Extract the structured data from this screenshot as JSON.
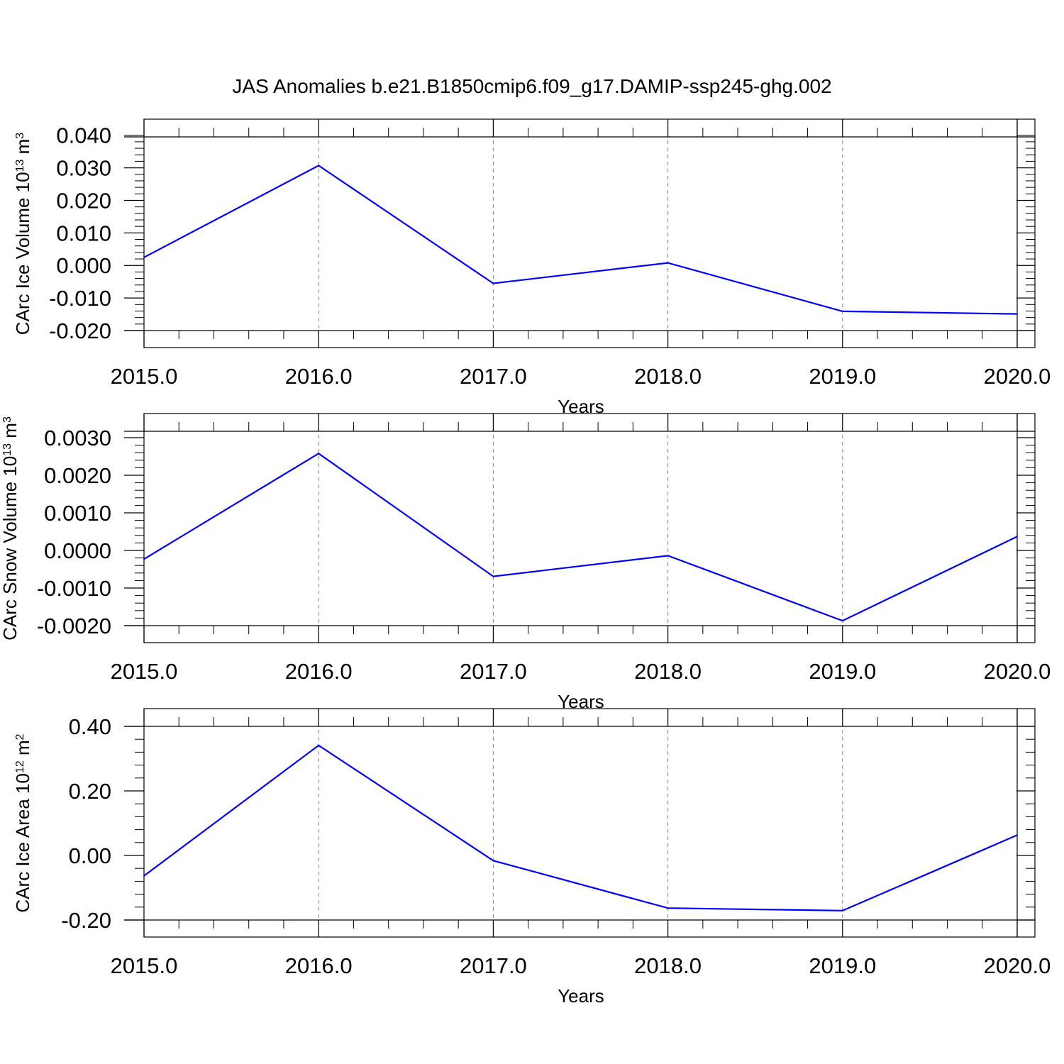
{
  "figure": {
    "title": "JAS Anomalies b.e21.B1850cmip6.f09_g17.DAMIP-ssp245-ghg.002"
  },
  "chart_data": [
    {
      "type": "line",
      "xlabel": "Years",
      "ylabel": {
        "text": "CArc Ice Volume 10",
        "sup": "13",
        "unit": " m",
        "unit_sup": "3"
      },
      "x": [
        2015,
        2016,
        2017,
        2018,
        2019,
        2020
      ],
      "xticks": [
        "2015.0",
        "2016.0",
        "2017.0",
        "2018.0",
        "2019.0",
        "2020.0"
      ],
      "xlim": [
        2015,
        2020
      ],
      "ylim": [
        -0.02,
        0.0395
      ],
      "yticks": [
        -0.02,
        -0.01,
        0.0,
        0.01,
        0.02,
        0.03,
        0.04
      ],
      "yticklabels": [
        "-0.020",
        "-0.010",
        "0.000",
        "0.010",
        "0.020",
        "0.030",
        "0.040"
      ],
      "yminor": 0.002,
      "grid": "vertical dashed at major x ticks",
      "series": [
        {
          "values": [
            0.0025,
            0.0307,
            -0.0055,
            0.0008,
            -0.0141,
            -0.0149
          ],
          "color": "#0000ff"
        }
      ]
    },
    {
      "type": "line",
      "xlabel": "Years",
      "ylabel": {
        "text": "CArc Snow Volume 10",
        "sup": "13",
        "unit": " m",
        "unit_sup": "3"
      },
      "x": [
        2015,
        2016,
        2017,
        2018,
        2019,
        2020
      ],
      "xticks": [
        "2015.0",
        "2016.0",
        "2017.0",
        "2018.0",
        "2019.0",
        "2020.0"
      ],
      "xlim": [
        2015,
        2020
      ],
      "ylim": [
        -0.002,
        0.00317
      ],
      "yticks": [
        -0.002,
        -0.001,
        0.0,
        0.001,
        0.002,
        0.003
      ],
      "yticklabels": [
        "-0.0020",
        "-0.0010",
        "0.0000",
        "0.0010",
        "0.0020",
        "0.0030"
      ],
      "yminor": 0.0002,
      "grid": "vertical dashed at major x ticks",
      "series": [
        {
          "values": [
            -0.00023,
            0.00258,
            -0.00069,
            -0.00014,
            -0.00187,
            0.00037
          ],
          "color": "#0000ff"
        }
      ]
    },
    {
      "type": "line",
      "xlabel": "Years",
      "ylabel": {
        "text": "CArc Ice Area 10",
        "sup": "12",
        "unit": " m",
        "unit_sup": "2"
      },
      "x": [
        2015,
        2016,
        2017,
        2018,
        2019,
        2020
      ],
      "xticks": [
        "2015.0",
        "2016.0",
        "2017.0",
        "2018.0",
        "2019.0",
        "2020.0"
      ],
      "xlim": [
        2015,
        2020
      ],
      "ylim": [
        -0.2,
        0.4
      ],
      "yticks": [
        -0.2,
        0.0,
        0.2,
        0.4
      ],
      "yticklabels": [
        "-0.20",
        "0.00",
        "0.20",
        "0.40"
      ],
      "yminor": 0.04,
      "grid": "vertical dashed at major x ticks",
      "series": [
        {
          "values": [
            -0.063,
            0.341,
            -0.016,
            -0.163,
            -0.171,
            0.063
          ],
          "color": "#0000ff"
        }
      ]
    }
  ]
}
